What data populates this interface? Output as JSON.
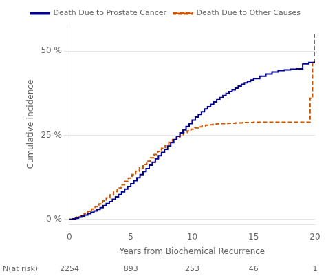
{
  "chart_data": {
    "type": "line",
    "xlabel": "Years from Biochemical Recurrence",
    "ylabel": "Cumulative incidence",
    "xlim": [
      0,
      20
    ],
    "ylim": [
      -0.015,
      0.58
    ],
    "xticks": [
      0,
      5,
      10,
      15,
      20
    ],
    "yticks": [
      {
        "value": 0,
        "label": "0 %"
      },
      {
        "value": 0.25,
        "label": "25 %"
      },
      {
        "value": 0.5,
        "label": "50 %"
      }
    ],
    "grid": "y",
    "legend": "upper left",
    "series": [
      {
        "name": "Death Due to Prostate Cancer",
        "color": "#00008B",
        "line_style": "solid",
        "x": [
          0,
          0.25,
          0.5,
          0.75,
          1.0,
          1.25,
          1.5,
          1.75,
          2.0,
          2.25,
          2.5,
          2.75,
          3.0,
          3.25,
          3.5,
          3.75,
          4.0,
          4.25,
          4.5,
          4.75,
          5.0,
          5.25,
          5.5,
          5.75,
          6.0,
          6.25,
          6.5,
          6.75,
          7.0,
          7.25,
          7.5,
          7.75,
          8.0,
          8.25,
          8.5,
          8.75,
          9.0,
          9.25,
          9.5,
          9.75,
          10.0,
          10.25,
          10.5,
          10.75,
          11.0,
          11.25,
          11.5,
          11.75,
          12.0,
          12.25,
          12.5,
          12.75,
          13.0,
          13.25,
          13.5,
          13.75,
          14.0,
          14.25,
          14.5,
          14.75,
          15.0,
          15.5,
          16.0,
          16.5,
          17.0,
          17.5,
          18.0,
          18.5,
          19.0,
          19.5,
          20.0
        ],
        "values": [
          0.0,
          0.002,
          0.004,
          0.007,
          0.01,
          0.013,
          0.017,
          0.021,
          0.025,
          0.03,
          0.035,
          0.041,
          0.047,
          0.053,
          0.06,
          0.067,
          0.074,
          0.082,
          0.09,
          0.098,
          0.106,
          0.115,
          0.124,
          0.133,
          0.142,
          0.151,
          0.161,
          0.17,
          0.18,
          0.189,
          0.199,
          0.208,
          0.218,
          0.228,
          0.237,
          0.247,
          0.257,
          0.266,
          0.276,
          0.285,
          0.295,
          0.304,
          0.312,
          0.32,
          0.328,
          0.335,
          0.342,
          0.349,
          0.356,
          0.362,
          0.368,
          0.374,
          0.38,
          0.385,
          0.39,
          0.396,
          0.401,
          0.406,
          0.41,
          0.414,
          0.418,
          0.425,
          0.432,
          0.438,
          0.442,
          0.444,
          0.446,
          0.447,
          0.462,
          0.466,
          0.47
        ]
      },
      {
        "name": "Death Due to Other Causes",
        "color": "#CC5500",
        "line_style": "dashed",
        "x": [
          0,
          0.3,
          0.6,
          0.9,
          1.2,
          1.5,
          1.8,
          2.1,
          2.4,
          2.7,
          3.0,
          3.3,
          3.6,
          3.9,
          4.2,
          4.5,
          4.8,
          5.1,
          5.4,
          5.7,
          6.0,
          6.3,
          6.6,
          6.9,
          7.2,
          7.5,
          7.8,
          8.1,
          8.4,
          8.7,
          9.0,
          9.3,
          9.6,
          9.9,
          10.2,
          10.5,
          10.8,
          11.1,
          11.4,
          11.7,
          12.0,
          12.3,
          12.6,
          12.9,
          13.2,
          13.5,
          13.8,
          14.1,
          14.4,
          14.7,
          15.0,
          15.5,
          16.0,
          16.5,
          17.0,
          17.5,
          18.0,
          18.5,
          19.0,
          19.4,
          19.6,
          19.8,
          20.0
        ],
        "values": [
          0.0,
          0.003,
          0.007,
          0.012,
          0.018,
          0.024,
          0.031,
          0.038,
          0.046,
          0.055,
          0.064,
          0.073,
          0.083,
          0.093,
          0.103,
          0.113,
          0.123,
          0.133,
          0.143,
          0.153,
          0.163,
          0.173,
          0.183,
          0.193,
          0.202,
          0.211,
          0.22,
          0.229,
          0.237,
          0.245,
          0.252,
          0.258,
          0.263,
          0.268,
          0.272,
          0.275,
          0.278,
          0.28,
          0.281,
          0.283,
          0.284,
          0.285,
          0.285,
          0.286,
          0.286,
          0.287,
          0.287,
          0.288,
          0.288,
          0.288,
          0.289,
          0.289,
          0.289,
          0.289,
          0.289,
          0.289,
          0.289,
          0.289,
          0.289,
          0.289,
          0.36,
          0.47,
          0.55
        ]
      }
    ],
    "at_risk": {
      "label": "N(at risk)",
      "x": [
        0,
        5,
        10,
        15,
        20
      ],
      "values": [
        2254,
        893,
        253,
        46,
        1
      ]
    }
  }
}
